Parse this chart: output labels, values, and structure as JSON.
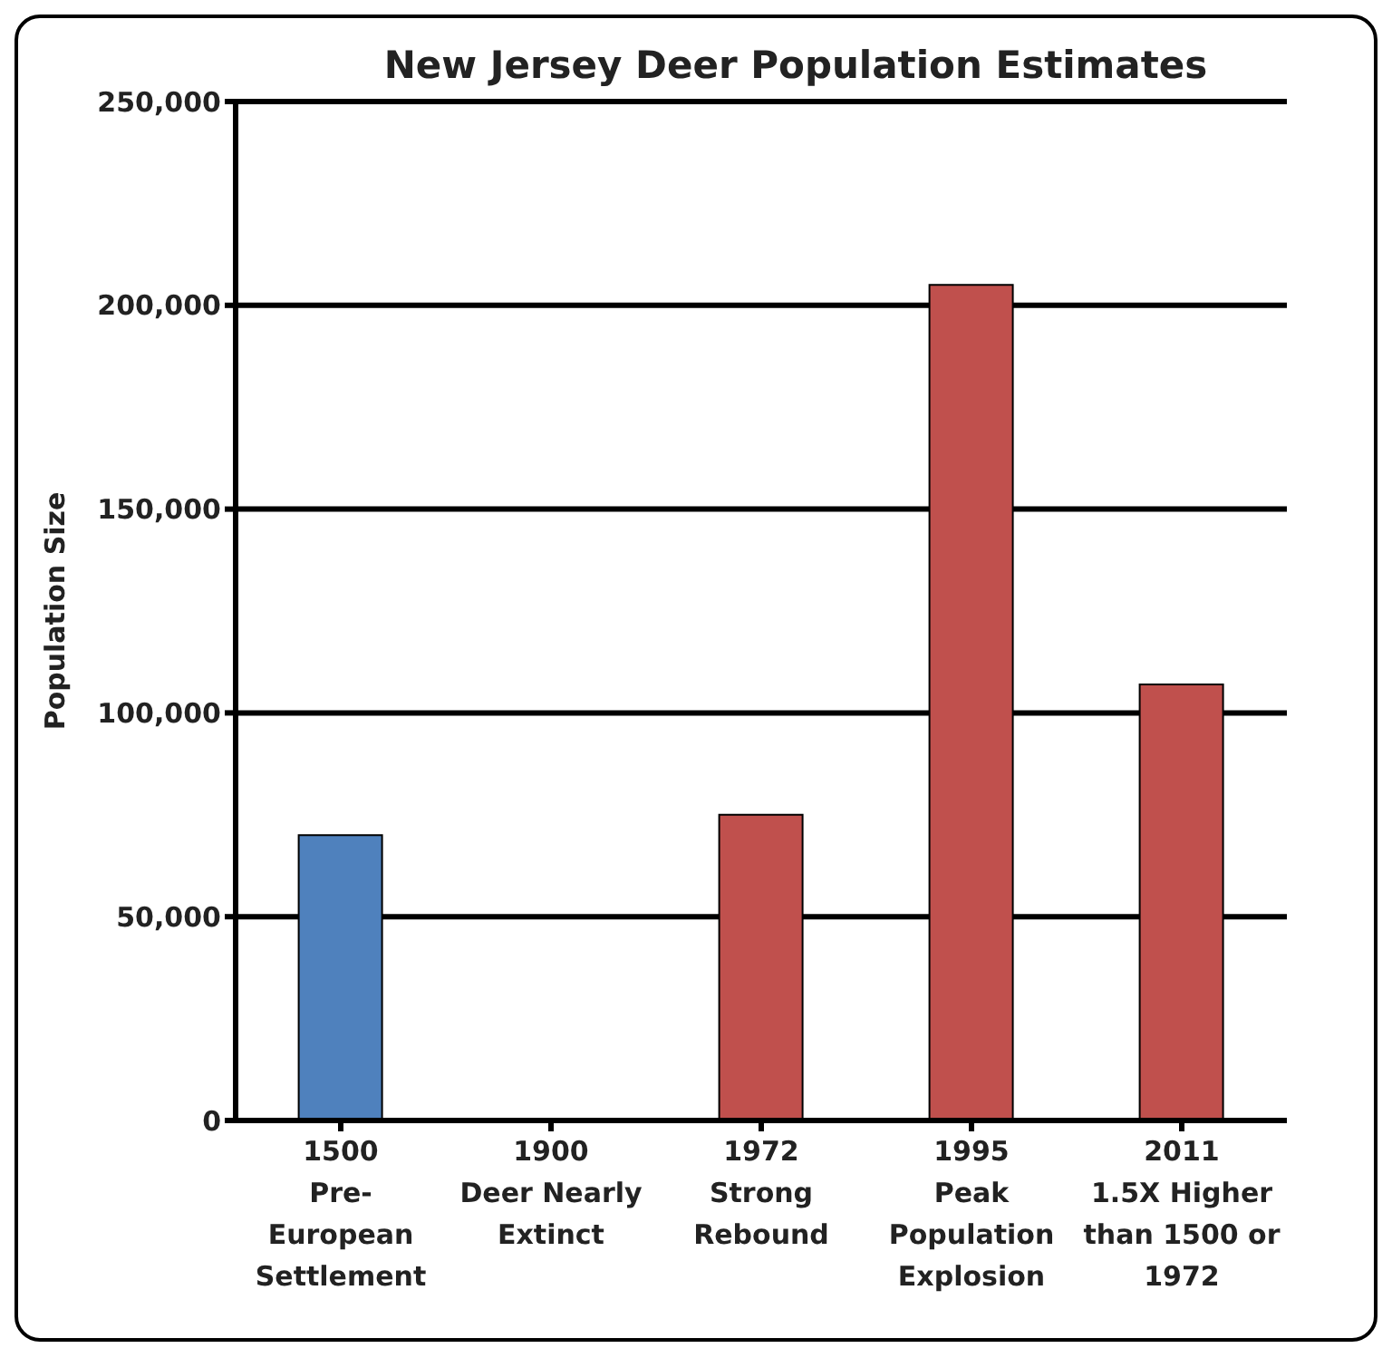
{
  "chart_data": {
    "type": "bar",
    "title": "New Jersey Deer Population  Estimates",
    "ylabel": "Population Size",
    "categories": [
      "1500\nPre-\nEuropean\nSettlement",
      "1900\nDeer Nearly\nExtinct",
      "1972\nStrong\nRebound",
      "1995\nPeak\nPopulation\nExplosion",
      "2011\n1.5X Higher\nthan 1500 or\n1972"
    ],
    "values": [
      70000,
      0,
      75000,
      205000,
      107000
    ],
    "colors": [
      "#4f81bd",
      "#c0504d",
      "#c0504d",
      "#c0504d",
      "#c0504d"
    ],
    "ylim": [
      0,
      250000
    ],
    "yticks": [
      {
        "value": 0,
        "label": "0"
      },
      {
        "value": 50000,
        "label": "50,000"
      },
      {
        "value": 100000,
        "label": "100,000"
      },
      {
        "value": 150000,
        "label": "150,000"
      },
      {
        "value": 200000,
        "label": "200,000"
      },
      {
        "value": 250000,
        "label": "250,000"
      }
    ],
    "grid": "y"
  }
}
